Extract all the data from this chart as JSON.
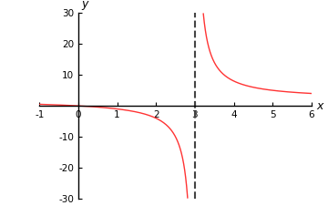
{
  "title": "",
  "xlabel": "x",
  "ylabel": "y",
  "xlim": [
    -1,
    6
  ],
  "ylim": [
    -30,
    30
  ],
  "asymptote_x": 3,
  "xticks": [
    -1,
    0,
    1,
    2,
    3,
    4,
    5,
    6
  ],
  "yticks": [
    -30,
    -20,
    -10,
    10,
    20,
    30
  ],
  "curve_color": "#ff3333",
  "asymptote_color": "#444444",
  "figsize": [
    3.6,
    2.37
  ],
  "dpi": 100
}
